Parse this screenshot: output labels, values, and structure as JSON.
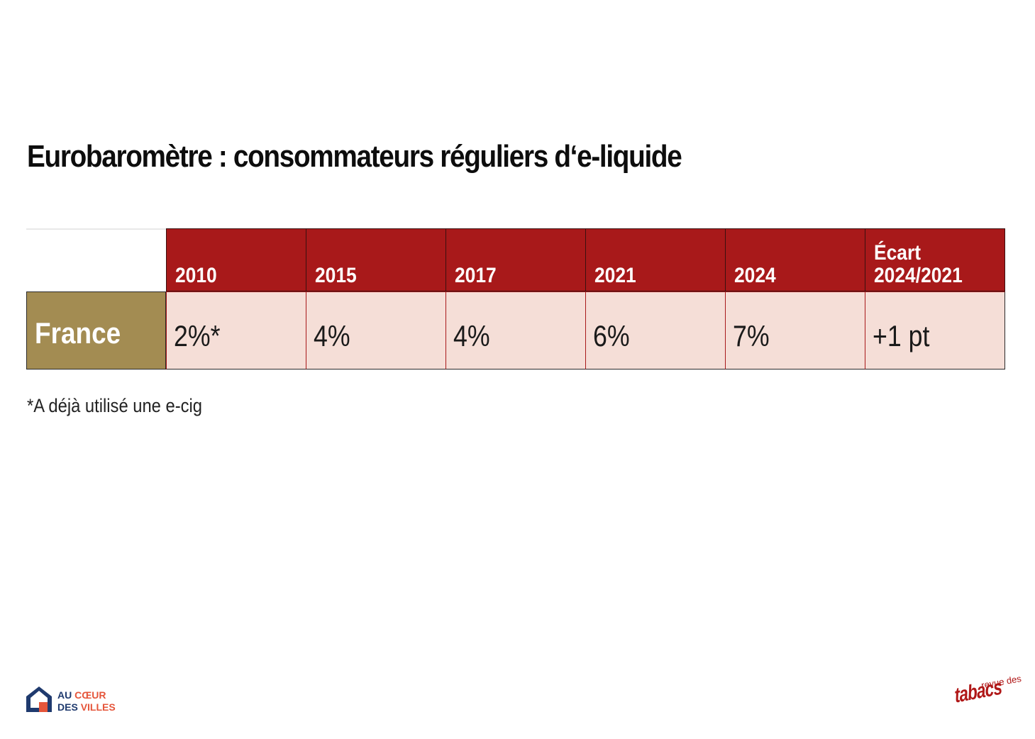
{
  "title": "Eurobaromètre : consommateurs réguliers d‘e-liquide",
  "chart_data": {
    "type": "table",
    "columns": [
      "2010",
      "2015",
      "2017",
      "2021",
      "2024",
      "Écart\n2024/2021"
    ],
    "rows": [
      {
        "label": "France",
        "cells": [
          "2%*",
          "4%",
          "4%",
          "6%",
          "7%",
          "+1 pt"
        ]
      }
    ]
  },
  "footnote": "*A déjà utilisé une e-cig",
  "logos": {
    "left": {
      "line1_a": "AU ",
      "line1_b": "CŒUR",
      "line2_a": "DES ",
      "line2_b": "VILLES"
    },
    "right": {
      "small": "revue des",
      "main": "tabacs"
    }
  },
  "colors": {
    "header_red": "#a8191a",
    "row_label_gold": "#a38c52",
    "cell_pink": "#f5ded7"
  }
}
